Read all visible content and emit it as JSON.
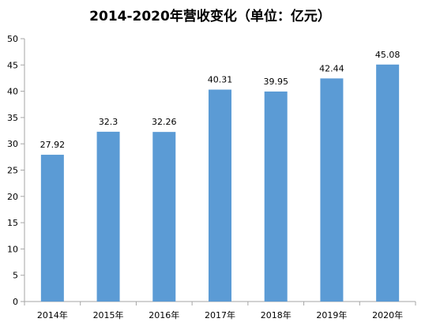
{
  "colors": {
    "bar": "#5B9BD5",
    "axis": "#A6A6A6",
    "text": "#000000",
    "background": "#FFFFFF"
  },
  "chart_data": {
    "type": "bar",
    "title": "2014-2020年营收变化（单位：亿元）",
    "xlabel": "",
    "ylabel": "",
    "categories": [
      "2014年",
      "2015年",
      "2016年",
      "2017年",
      "2018年",
      "2019年",
      "2020年"
    ],
    "values": [
      27.92,
      32.3,
      32.26,
      40.31,
      39.95,
      42.44,
      45.08
    ],
    "data_labels": [
      "27.92",
      "32.3",
      "32.26",
      "40.31",
      "39.95",
      "42.44",
      "45.08"
    ],
    "ylim": [
      0,
      50
    ],
    "yticks": [
      0,
      5,
      10,
      15,
      20,
      25,
      30,
      35,
      40,
      45,
      50
    ],
    "ytick_labels": [
      "0",
      "5",
      "10",
      "15",
      "20",
      "25",
      "30",
      "35",
      "40",
      "45",
      "50"
    ],
    "grid": false,
    "legend": "none"
  }
}
